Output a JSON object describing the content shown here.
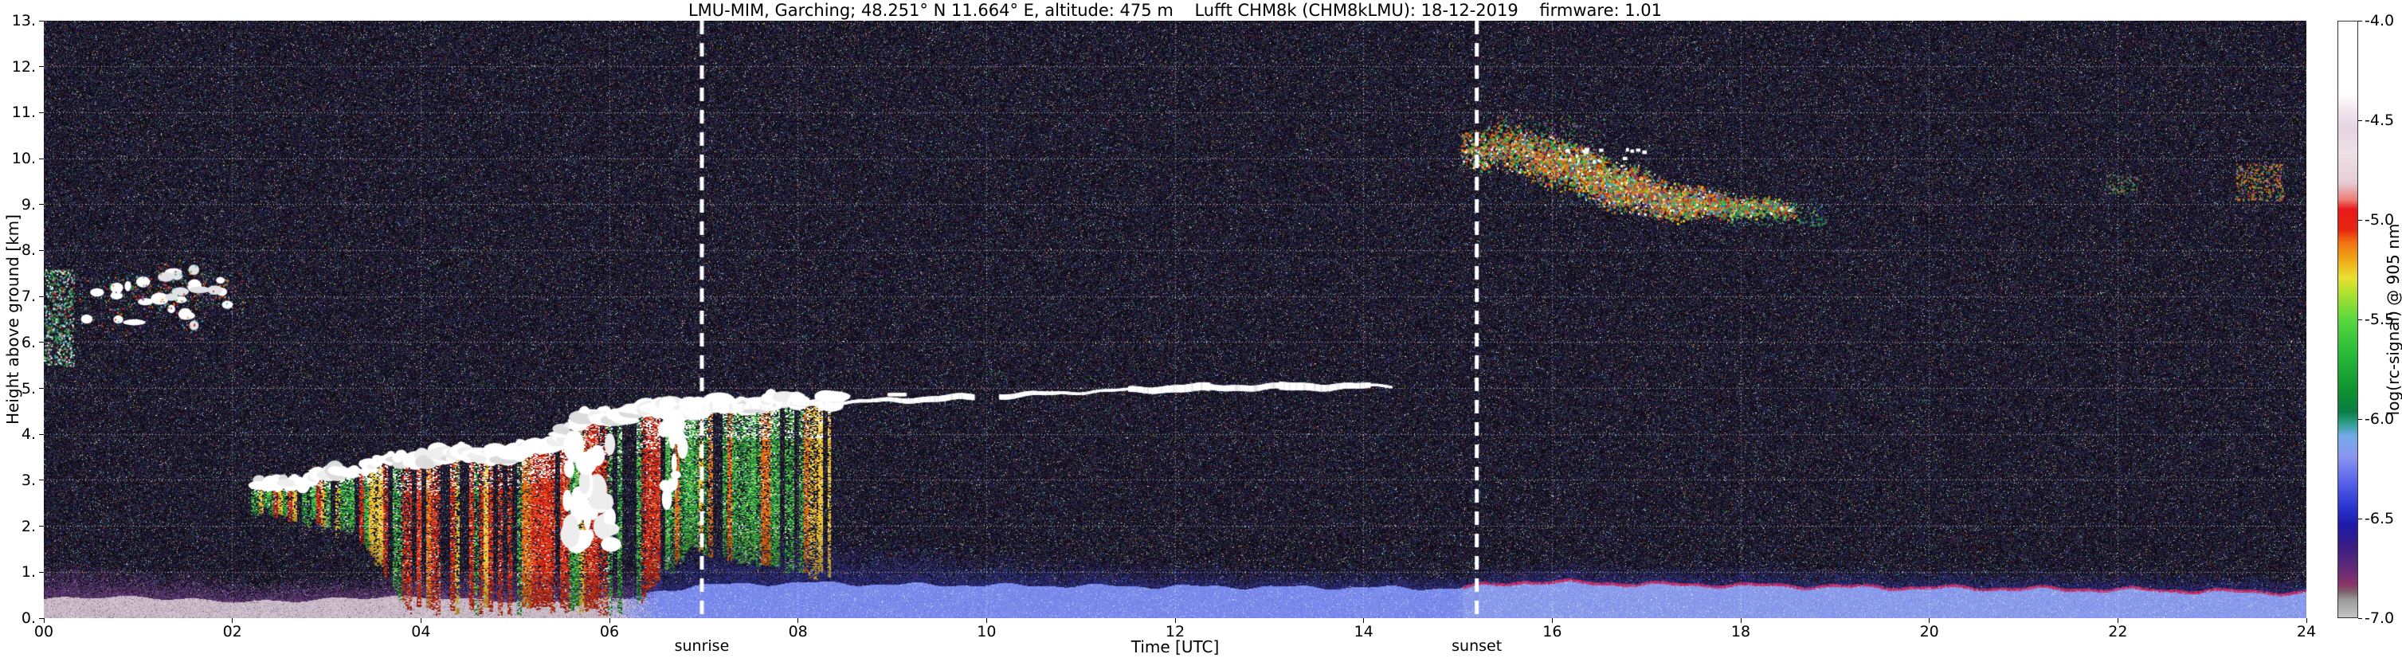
{
  "chart_data": {
    "type": "heatmap",
    "description": "Ceilometer quicklook: attenuated backscatter (log rc-signal) vs time and height",
    "title": "LMU-MIM, Garching; 48.251° N 11.664° E, altitude: 475 m    Lufft CHM8k (CHM8kLMU): 18-12-2019    firmware: 1.01",
    "xlabel": "Time [UTC]",
    "ylabel": "Height above ground [km]",
    "xlim": [
      0,
      24
    ],
    "ylim": [
      0,
      13
    ],
    "xtick_labels": [
      "00",
      "02",
      "04",
      "06",
      "08",
      "10",
      "12",
      "14",
      "16",
      "18",
      "20",
      "22",
      "24"
    ],
    "xtick_values": [
      0,
      2,
      4,
      6,
      8,
      10,
      12,
      14,
      16,
      18,
      20,
      22,
      24
    ],
    "ytick_labels": [
      "0.",
      "1.",
      "2.",
      "3.",
      "4.",
      "5.",
      "6.",
      "7.",
      "8.",
      "9.",
      "10.",
      "11.",
      "12.",
      "13."
    ],
    "ytick_values": [
      0,
      1,
      2,
      3,
      4,
      5,
      6,
      7,
      8,
      9,
      10,
      11,
      12,
      13
    ],
    "grid": {
      "style": "dotted",
      "color": "#ffffff",
      "x_step": 2,
      "y_step": 1
    },
    "colorbar": {
      "label": "log(rc-signal) @ 905 nm",
      "tick_labels": [
        "-4.0",
        "-4.5",
        "-5.0",
        "-5.5",
        "-6.0",
        "-6.5",
        "-7.0"
      ],
      "tick_values": [
        -4.0,
        -4.5,
        -5.0,
        -5.5,
        -6.0,
        -6.5,
        -7.0
      ],
      "vmax": -4.0,
      "vmin": -7.0,
      "stops": [
        [
          0,
          "#ffffff"
        ],
        [
          0.12,
          "#ffffff"
        ],
        [
          0.15,
          "#f2e6ee"
        ],
        [
          0.18,
          "#e4d4e0"
        ],
        [
          0.22,
          "#eee0e6"
        ],
        [
          0.27,
          "#e6cdd6"
        ],
        [
          0.3,
          "#ec7a72"
        ],
        [
          0.315,
          "#e81818"
        ],
        [
          0.35,
          "#e62812"
        ],
        [
          0.37,
          "#f07010"
        ],
        [
          0.4,
          "#f0a818"
        ],
        [
          0.43,
          "#e8e030"
        ],
        [
          0.46,
          "#a8e030"
        ],
        [
          0.5,
          "#58d840"
        ],
        [
          0.56,
          "#28b838"
        ],
        [
          0.62,
          "#109030"
        ],
        [
          0.655,
          "#0c7c44"
        ],
        [
          0.675,
          "#2f9f8f"
        ],
        [
          0.695,
          "#74aae8"
        ],
        [
          0.73,
          "#8b96f2"
        ],
        [
          0.775,
          "#5560e8"
        ],
        [
          0.815,
          "#2a35cf"
        ],
        [
          0.845,
          "#1d1aa8"
        ],
        [
          0.88,
          "#3a1d85"
        ],
        [
          0.915,
          "#5c2a78"
        ],
        [
          0.945,
          "#8a3468"
        ],
        [
          0.958,
          "#7d6470"
        ],
        [
          0.97,
          "#9a9a9a"
        ],
        [
          1,
          "#c4c4c4"
        ]
      ]
    },
    "annotations": [
      {
        "label": "sunrise",
        "time_utc": 6.98
      },
      {
        "label": "sunset",
        "time_utc": 15.2
      }
    ],
    "features": [
      {
        "id": "noise",
        "desc": "dense multicolour speckle noise over near-black background"
      },
      {
        "id": "surface-layer",
        "pink_until": 6.55,
        "pink_top_km": 0.45,
        "purple_top_km": 1.15,
        "blue_from": 5.9,
        "blue_top": [
          [
            5.9,
            0.22
          ],
          [
            6.4,
            0.55
          ],
          [
            6.9,
            0.72
          ],
          [
            8,
            0.78
          ],
          [
            9,
            0.74
          ],
          [
            12,
            0.7
          ],
          [
            15,
            0.66
          ],
          [
            15.7,
            0.8
          ],
          [
            17,
            0.75
          ],
          [
            20,
            0.67
          ],
          [
            22,
            0.63
          ],
          [
            24,
            0.56
          ]
        ],
        "halo": [
          [
            5.9,
            0.5
          ],
          [
            6.5,
            1.15
          ],
          [
            7.5,
            1.35
          ],
          [
            9,
            1.05
          ],
          [
            10,
            0.8
          ],
          [
            12,
            0.6
          ],
          [
            15,
            0.45
          ],
          [
            16,
            0.55
          ],
          [
            24,
            0.45
          ]
        ],
        "magenta_cap_from": 15.05
      },
      {
        "id": "precipitation",
        "t_range": [
          2.2,
          8.35
        ],
        "cloud_top": [
          [
            2.2,
            2.9
          ],
          [
            3,
            3.1
          ],
          [
            3.8,
            3.45
          ],
          [
            4.6,
            3.6
          ],
          [
            5,
            3.55
          ],
          [
            5.4,
            3.9
          ],
          [
            5.8,
            4.4
          ],
          [
            6.3,
            4.5
          ],
          [
            6.9,
            4.6
          ],
          [
            7.7,
            4.7
          ],
          [
            8.35,
            4.75
          ]
        ],
        "fall_bottom": [
          [
            2.3,
            2.3
          ],
          [
            3.3,
            1.8
          ],
          [
            3.9,
            0.15
          ],
          [
            6.2,
            0.12
          ],
          [
            6.6,
            0.9
          ],
          [
            6.9,
            1.5
          ],
          [
            7.4,
            1.2
          ],
          [
            8.35,
            0.9
          ]
        ]
      },
      {
        "id": "white-core",
        "t_range": [
          5.55,
          6.05
        ],
        "h_range": [
          1.6,
          3.9
        ]
      },
      {
        "id": "white-streak",
        "t_range": [
          6.56,
          6.78
        ],
        "h_range": [
          2.5,
          4.4
        ]
      },
      {
        "id": "stratus-line",
        "path": [
          [
            6.9,
            4.55
          ],
          [
            8,
            4.66
          ],
          [
            9,
            4.74
          ],
          [
            10,
            4.82
          ],
          [
            11,
            4.92
          ],
          [
            12,
            5
          ],
          [
            13,
            5.03
          ],
          [
            14.25,
            5.05
          ]
        ],
        "gap_t": [
          9.85,
          10.12
        ]
      },
      {
        "id": "morning-clouds",
        "t_range": [
          0.45,
          1.95
        ],
        "h_range": [
          6.35,
          7.6
        ]
      },
      {
        "id": "left-edge-speckle",
        "t_range": [
          0,
          0.32
        ],
        "h_range": [
          5.5,
          7.6
        ]
      },
      {
        "id": "cirrus-band",
        "t_range": [
          15.05,
          18.55
        ],
        "center": [
          [
            15.05,
            10.25
          ],
          [
            18.55,
            8.68
          ]
        ],
        "peak_t": 16.6
      },
      {
        "id": "cirrus-tail",
        "t_range": [
          17.75,
          18.9
        ],
        "h_range": [
          8.55,
          9.05
        ]
      },
      {
        "id": "cirrus-patch-a",
        "t_range": [
          21.85,
          22.2
        ],
        "h_range": [
          9.25,
          9.65
        ]
      },
      {
        "id": "cirrus-patch-b",
        "t_range": [
          23.25,
          23.75
        ],
        "h_range": [
          9.1,
          9.9
        ]
      }
    ]
  }
}
